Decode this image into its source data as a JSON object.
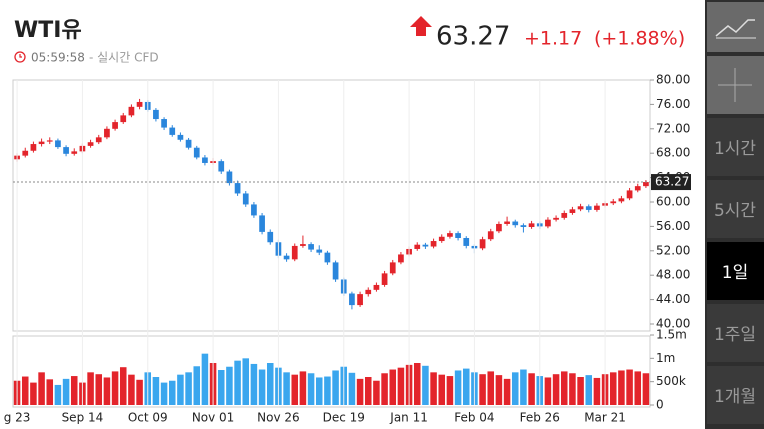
{
  "header": {
    "title": "WTI유",
    "time": "05:59:58",
    "status": "- 실시간 CFD",
    "price": "63.27",
    "change": "+1.17",
    "change_pct": "(+1.88%)"
  },
  "sidebar": {
    "buttons": [
      "1시간",
      "5시간",
      "1일",
      "1주일",
      "1개월"
    ],
    "active": "1일"
  },
  "chart_data": {
    "type": "candlestick",
    "up_color": "#e3242b",
    "down_color": "#2a86dc",
    "volume_up_color": "#e3242b",
    "volume_down_color": "#3aa6ee",
    "categories": [
      "g 23",
      null,
      null,
      null,
      null,
      null,
      null,
      null,
      "Sep 14",
      null,
      null,
      null,
      null,
      null,
      null,
      null,
      "Oct 09",
      null,
      null,
      null,
      null,
      null,
      null,
      null,
      "Nov 01",
      null,
      null,
      null,
      null,
      null,
      null,
      null,
      "Nov 26",
      null,
      null,
      null,
      null,
      null,
      null,
      null,
      "Dec 19",
      null,
      null,
      null,
      null,
      null,
      null,
      null,
      "Jan 11",
      null,
      null,
      null,
      null,
      null,
      null,
      null,
      "Feb 04",
      null,
      null,
      null,
      null,
      null,
      null,
      null,
      "Feb 26",
      null,
      null,
      null,
      null,
      null,
      null,
      null,
      "Mar 21",
      null,
      null,
      null,
      null,
      null
    ],
    "ohlc": [
      [
        67.0,
        68.0,
        66.6,
        67.6
      ],
      [
        67.6,
        68.9,
        67.3,
        68.4
      ],
      [
        68.4,
        69.9,
        68.1,
        69.5
      ],
      [
        69.5,
        70.4,
        69.1,
        69.9
      ],
      [
        69.9,
        70.6,
        69.5,
        70.1
      ],
      [
        70.1,
        70.4,
        68.7,
        69.0
      ],
      [
        69.0,
        69.3,
        67.5,
        67.9
      ],
      [
        67.9,
        68.8,
        67.6,
        68.3
      ],
      [
        68.3,
        69.6,
        68.0,
        69.2
      ],
      [
        69.2,
        70.2,
        68.9,
        69.8
      ],
      [
        69.8,
        71.0,
        69.5,
        70.6
      ],
      [
        70.6,
        72.4,
        70.3,
        72.0
      ],
      [
        72.0,
        73.5,
        71.7,
        73.1
      ],
      [
        73.1,
        74.6,
        72.8,
        74.2
      ],
      [
        74.2,
        76.0,
        73.9,
        75.6
      ],
      [
        75.6,
        76.9,
        75.2,
        76.4
      ],
      [
        76.4,
        76.7,
        74.8,
        75.1
      ],
      [
        75.1,
        75.4,
        73.2,
        73.6
      ],
      [
        73.6,
        73.9,
        71.8,
        72.2
      ],
      [
        72.2,
        72.6,
        70.7,
        71.0
      ],
      [
        71.0,
        71.4,
        69.9,
        70.2
      ],
      [
        70.2,
        70.5,
        68.6,
        68.9
      ],
      [
        68.9,
        69.2,
        67.0,
        67.3
      ],
      [
        67.3,
        67.7,
        66.0,
        66.4
      ],
      [
        66.4,
        67.2,
        66.1,
        66.7
      ],
      [
        66.7,
        67.0,
        64.6,
        65.0
      ],
      [
        65.0,
        65.3,
        62.7,
        63.1
      ],
      [
        63.1,
        63.5,
        61.0,
        61.4
      ],
      [
        61.4,
        61.8,
        59.2,
        59.6
      ],
      [
        59.6,
        60.0,
        57.4,
        57.8
      ],
      [
        57.8,
        58.2,
        54.7,
        55.1
      ],
      [
        55.1,
        55.5,
        53.0,
        53.4
      ],
      [
        53.4,
        53.8,
        50.8,
        51.2
      ],
      [
        51.2,
        51.6,
        50.2,
        50.6
      ],
      [
        50.6,
        53.2,
        50.3,
        52.8
      ],
      [
        52.8,
        54.5,
        52.5,
        53.1
      ],
      [
        53.1,
        53.4,
        51.8,
        52.2
      ],
      [
        52.2,
        52.9,
        51.3,
        51.7
      ],
      [
        51.7,
        52.0,
        49.7,
        50.1
      ],
      [
        50.1,
        50.4,
        46.9,
        47.3
      ],
      [
        47.3,
        47.6,
        44.6,
        45.0
      ],
      [
        45.0,
        45.3,
        42.4,
        43.1
      ],
      [
        43.1,
        45.3,
        42.8,
        44.9
      ],
      [
        44.9,
        46.0,
        44.5,
        45.6
      ],
      [
        45.6,
        46.8,
        45.3,
        46.4
      ],
      [
        46.4,
        48.7,
        46.1,
        48.3
      ],
      [
        48.3,
        50.5,
        48.0,
        50.1
      ],
      [
        50.1,
        51.8,
        49.8,
        51.4
      ],
      [
        51.4,
        52.7,
        51.1,
        52.3
      ],
      [
        52.3,
        53.4,
        52.0,
        53.0
      ],
      [
        53.0,
        53.3,
        52.3,
        52.7
      ],
      [
        52.7,
        54.0,
        52.4,
        53.6
      ],
      [
        53.6,
        54.7,
        53.3,
        54.3
      ],
      [
        54.3,
        55.3,
        54.0,
        54.9
      ],
      [
        54.9,
        55.2,
        53.7,
        54.1
      ],
      [
        54.1,
        54.4,
        52.4,
        52.8
      ],
      [
        52.8,
        53.1,
        51.6,
        52.4
      ],
      [
        52.4,
        54.3,
        52.1,
        53.9
      ],
      [
        53.9,
        55.6,
        53.6,
        55.2
      ],
      [
        55.2,
        56.8,
        54.9,
        56.4
      ],
      [
        56.4,
        57.6,
        56.1,
        56.8
      ],
      [
        56.8,
        57.1,
        55.8,
        56.2
      ],
      [
        56.2,
        56.5,
        55.0,
        55.9
      ],
      [
        55.9,
        56.9,
        55.6,
        56.5
      ],
      [
        56.5,
        56.8,
        55.6,
        56.0
      ],
      [
        56.0,
        57.5,
        55.7,
        57.1
      ],
      [
        57.1,
        57.8,
        56.8,
        57.4
      ],
      [
        57.4,
        58.6,
        57.1,
        58.2
      ],
      [
        58.2,
        59.2,
        57.9,
        58.8
      ],
      [
        58.8,
        59.7,
        58.5,
        59.3
      ],
      [
        59.3,
        59.6,
        58.3,
        58.7
      ],
      [
        58.7,
        59.8,
        58.4,
        59.4
      ],
      [
        59.4,
        60.2,
        59.1,
        59.8
      ],
      [
        59.8,
        60.5,
        59.5,
        60.1
      ],
      [
        60.1,
        61.0,
        59.8,
        60.6
      ],
      [
        60.6,
        62.3,
        60.3,
        61.9
      ],
      [
        61.9,
        63.0,
        61.6,
        62.6
      ],
      [
        62.6,
        63.6,
        62.3,
        63.27
      ]
    ],
    "volume": [
      520000,
      610000,
      480000,
      700000,
      550000,
      430000,
      560000,
      620000,
      480000,
      700000,
      660000,
      590000,
      720000,
      810000,
      650000,
      540000,
      700000,
      600000,
      480000,
      520000,
      650000,
      700000,
      830000,
      1100000,
      900000,
      750000,
      820000,
      950000,
      1000000,
      880000,
      760000,
      900000,
      800000,
      700000,
      650000,
      720000,
      680000,
      590000,
      610000,
      740000,
      820000,
      690000,
      560000,
      600000,
      520000,
      680000,
      760000,
      800000,
      860000,
      900000,
      840000,
      700000,
      650000,
      620000,
      740000,
      780000,
      700000,
      660000,
      720000,
      640000,
      560000,
      700000,
      760000,
      680000,
      620000,
      590000,
      660000,
      720000,
      680000,
      600000,
      640000,
      580000,
      660000,
      700000,
      740000,
      760000,
      720000,
      680000
    ],
    "ylim": [
      40,
      80
    ],
    "yticks": [
      {
        "value": 40,
        "label": "40.00"
      },
      {
        "value": 44,
        "label": "44.00"
      },
      {
        "value": 48,
        "label": "48.00"
      },
      {
        "value": 52,
        "label": "52.00"
      },
      {
        "value": 56,
        "label": "56.00"
      },
      {
        "value": 60,
        "label": "60.00"
      },
      {
        "value": 64,
        "label": "64.00"
      },
      {
        "value": 68,
        "label": "68.00"
      },
      {
        "value": 72,
        "label": "72.00"
      },
      {
        "value": 76,
        "label": "76.00"
      },
      {
        "value": 80,
        "label": "80.00"
      }
    ],
    "y2lim": [
      0,
      1500000
    ],
    "y2ticks": [
      0,
      {
        "value": 500000,
        "label": "500k"
      },
      {
        "value": 1000000,
        "label": "1m"
      },
      {
        "value": 1500000,
        "label": "1.5m"
      }
    ]
  }
}
